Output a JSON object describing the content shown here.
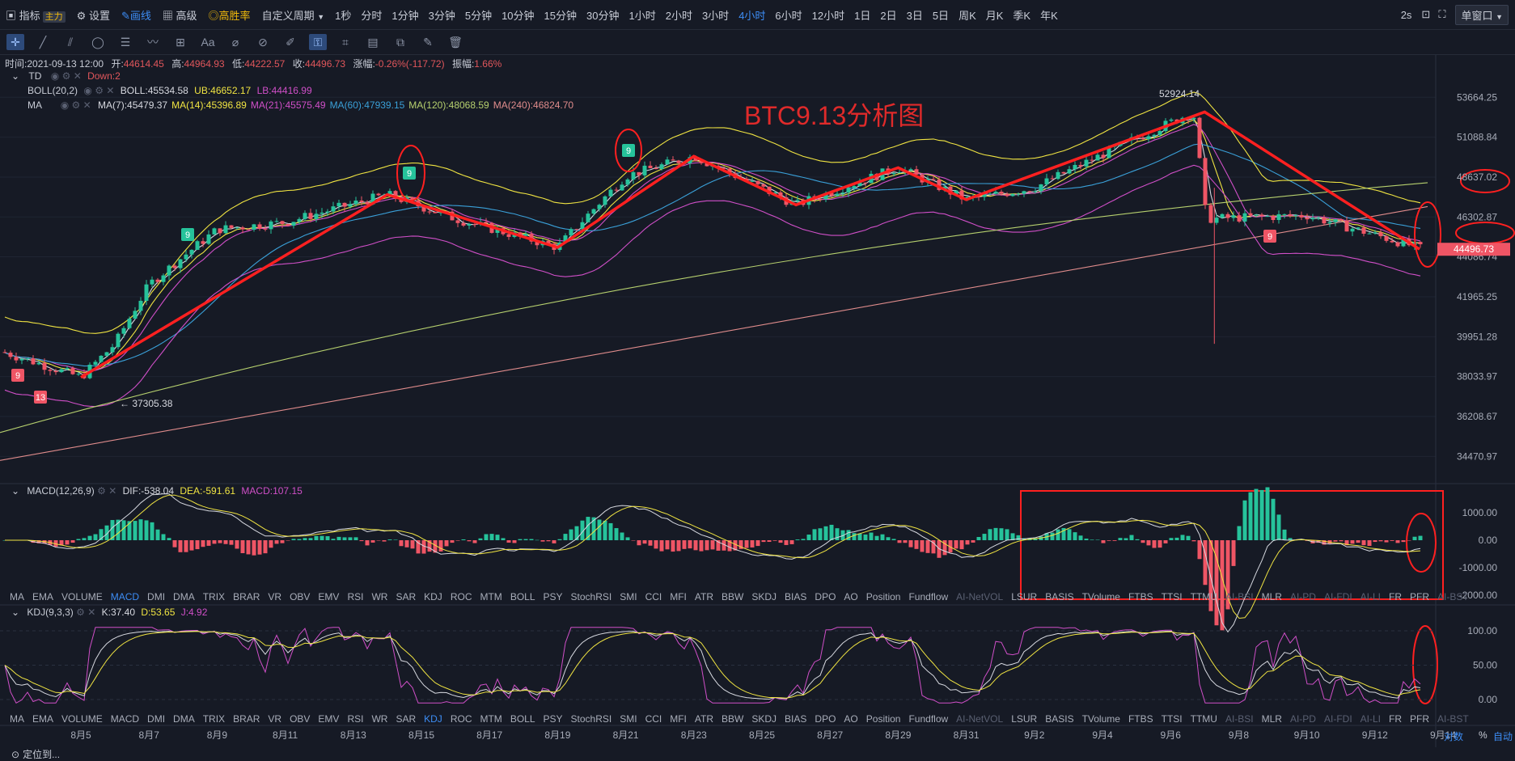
{
  "topbar": {
    "indicators_label": "指标",
    "main_tag": "主力",
    "settings_label": "设置",
    "draw_label": "画线",
    "advanced_label": "高级",
    "winrate_label": "高胜率",
    "custom_period_label": "自定义周期",
    "periods": [
      "1秒",
      "分时",
      "1分钟",
      "3分钟",
      "5分钟",
      "10分钟",
      "15分钟",
      "30分钟",
      "1小时",
      "2小时",
      "3小时",
      "4小时",
      "6小时",
      "12小时",
      "1日",
      "2日",
      "3日",
      "5日",
      "周K",
      "月K",
      "季K",
      "年K"
    ],
    "active_period": "4小时",
    "refresh": "2s",
    "window_mode": "单窗口"
  },
  "infoline": {
    "time_label": "时间:",
    "time": "2021-09-13 12:00",
    "open_label": "开:",
    "open": "44614.45",
    "high_label": "高:",
    "high": "44964.93",
    "low_label": "低:",
    "low": "44222.57",
    "close_label": "收:",
    "close": "44496.73",
    "change_label": "涨幅:",
    "change": "-0.26%(-117.72)",
    "amp_label": "振幅:",
    "amp": "1.66%"
  },
  "legend": {
    "td_name": "TD",
    "td_value": "Down:2",
    "boll_name": "BOLL(20,2)",
    "boll_mid": "BOLL:45534.58",
    "boll_ub": "UB:46652.17",
    "boll_lb": "LB:44416.99",
    "ma_name": "MA",
    "ma_values": [
      {
        "label": "MA(7):45479.37",
        "color": "#d7d9e0"
      },
      {
        "label": "MA(14):45396.89",
        "color": "#f0e442"
      },
      {
        "label": "MA(21):45575.49",
        "color": "#d04fc8"
      },
      {
        "label": "MA(60):47939.15",
        "color": "#3aa0d8"
      },
      {
        "label": "MA(120):48068.59",
        "color": "#b6d06e"
      },
      {
        "label": "MA(240):46824.70",
        "color": "#e08c8c"
      }
    ]
  },
  "annotation_title": "BTC9.13分析图",
  "macd_legend": {
    "name": "MACD(12,26,9)",
    "dif": "DIF:-538.04",
    "dea": "DEA:-591.61",
    "macd": "MACD:107.15"
  },
  "kdj_legend": {
    "name": "KDJ(9,3,3)",
    "k": "K:37.40",
    "d": "D:53.65",
    "j": "J:4.92"
  },
  "indicator_tabs": [
    "MA",
    "EMA",
    "VOLUME",
    "MACD",
    "DMI",
    "DMA",
    "TRIX",
    "BRAR",
    "VR",
    "OBV",
    "EMV",
    "RSI",
    "WR",
    "SAR",
    "KDJ",
    "ROC",
    "MTM",
    "BOLL",
    "PSY",
    "StochRSI",
    "SMI",
    "CCI",
    "MFI",
    "ATR",
    "BBW",
    "SKDJ",
    "BIAS",
    "DPO",
    "AO",
    "Position",
    "Fundflow",
    "AI-NetVOL",
    "LSUR",
    "BASIS",
    "TVolume",
    "FTBS",
    "TTSI",
    "TTMU",
    "AI-BSI",
    "MLR",
    "AI-PD",
    "AI-FDI",
    "AI-LI",
    "FR",
    "PFR",
    "AI-BST"
  ],
  "indicator_tabs_dim": [
    "AI-NetVOL",
    "AI-BSI",
    "AI-PD",
    "AI-FDI",
    "AI-LI",
    "AI-BST"
  ],
  "tabs_row1_current": "MACD",
  "tabs_row2_current": "KDJ",
  "bottom": {
    "locate_label": "定位到...",
    "log_label": "对数",
    "pct_label": "%",
    "auto_label": "自动"
  },
  "chart_data": {
    "type": "candlestick",
    "title": "BTC9.13分析图",
    "x_ticks": [
      "8月5",
      "8月7",
      "8月9",
      "8月11",
      "8月13",
      "8月15",
      "8月17",
      "8月19",
      "8月21",
      "8月23",
      "8月25",
      "8月27",
      "8月29",
      "8月31",
      "9月2",
      "9月4",
      "9月6",
      "9月8",
      "9月10",
      "9月12",
      "9月14"
    ],
    "y_ticks": [
      "53664.25",
      "51088.84",
      "48637.02",
      "46302.87",
      "44496.73",
      "44086.74",
      "41965.25",
      "39951.28",
      "38033.97",
      "36208.67",
      "34470.97"
    ],
    "price_path": [
      {
        "date": "8月4",
        "price": 39200
      },
      {
        "date": "8月5",
        "price": 38000
      },
      {
        "date": "8月6",
        "price": 39600
      },
      {
        "date": "8月7",
        "price": 42600
      },
      {
        "date": "8月9",
        "price": 45600
      },
      {
        "date": "8月11",
        "price": 46000
      },
      {
        "date": "8月14",
        "price": 47600
      },
      {
        "date": "8月16",
        "price": 46200
      },
      {
        "date": "8月19",
        "price": 44600
      },
      {
        "date": "8月21",
        "price": 48700
      },
      {
        "date": "8月23",
        "price": 49900
      },
      {
        "date": "8月26",
        "price": 47000
      },
      {
        "date": "8月29",
        "price": 49200
      },
      {
        "date": "8月31",
        "price": 47300
      },
      {
        "date": "9月2",
        "price": 48000
      },
      {
        "date": "9月7",
        "price": 52700
      },
      {
        "date": "9月7",
        "price": 46200
      },
      {
        "date": "9月10",
        "price": 46400
      },
      {
        "date": "9月13",
        "price": 44497
      }
    ],
    "labels": [
      {
        "text": "52924.14",
        "kind": "high"
      },
      {
        "text": "37305.38",
        "kind": "low"
      }
    ],
    "td_marks": [
      "9",
      "13",
      "9",
      "9",
      "9",
      "9"
    ],
    "last_price": "44496.73",
    "macd_y_ticks": [
      "1000.00",
      "0.00",
      "-1000.00",
      "-2000.00"
    ],
    "kdj_y_ticks": [
      "100.00",
      "50.00",
      "0.00"
    ]
  }
}
